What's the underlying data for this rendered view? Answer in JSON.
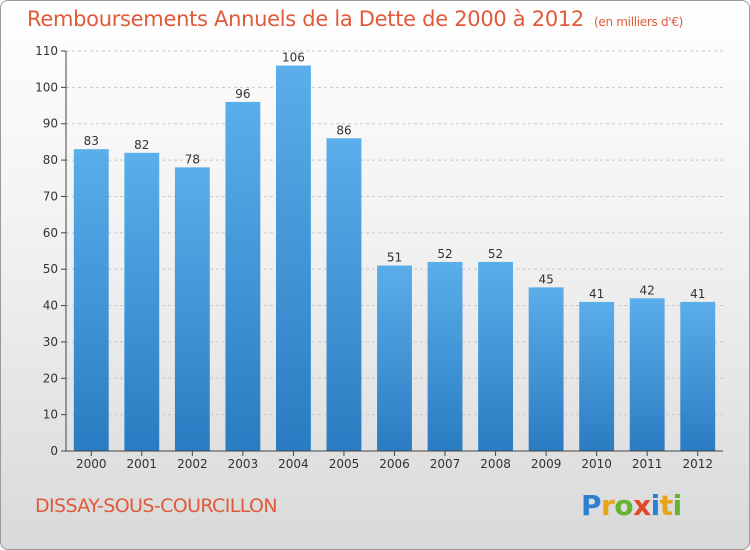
{
  "title": "Remboursements Annuels de la Dette de 2000 à 2012",
  "unit": "(en milliers d'€)",
  "commune": "DISSAY-SOUS-COURCILLON",
  "brand": {
    "text": "Proxiti",
    "letters": [
      {
        "ch": "P",
        "color": "#2e7fd0"
      },
      {
        "ch": "r",
        "color": "#e8a317"
      },
      {
        "ch": "o",
        "color": "#66b32e"
      },
      {
        "ch": "x",
        "color": "#e04a2a"
      },
      {
        "ch": "i",
        "color": "#2e7fd0"
      },
      {
        "ch": "t",
        "color": "#e8a317"
      },
      {
        "ch": "i",
        "color": "#66b32e"
      }
    ]
  },
  "chart_data": {
    "type": "bar",
    "categories": [
      "2000",
      "2001",
      "2002",
      "2003",
      "2004",
      "2005",
      "2006",
      "2007",
      "2008",
      "2009",
      "2010",
      "2011",
      "2012"
    ],
    "values": [
      83,
      82,
      78,
      96,
      106,
      86,
      51,
      52,
      52,
      45,
      41,
      42,
      41
    ],
    "ylim": [
      0,
      110
    ],
    "yticks": [
      0,
      10,
      20,
      30,
      40,
      50,
      60,
      70,
      80,
      90,
      100,
      110
    ],
    "grid": true,
    "bar_color_top": "#5aaeea",
    "bar_color_bottom": "#2a7cc2"
  }
}
